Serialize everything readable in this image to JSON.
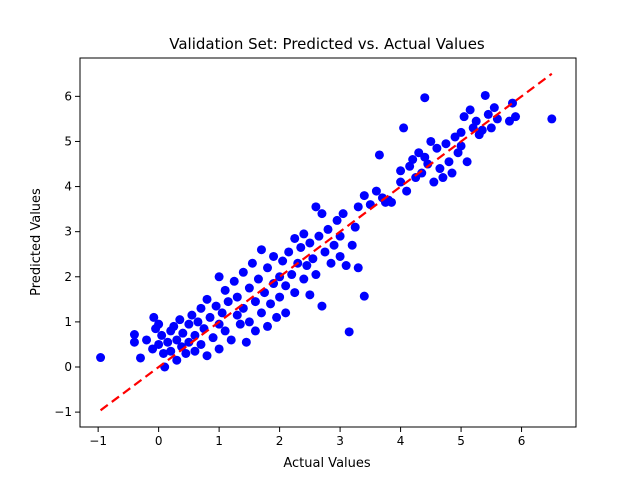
{
  "chart_data": {
    "type": "scatter",
    "title": "Validation Set: Predicted vs. Actual Values",
    "xlabel": "Actual Values",
    "ylabel": "Predicted Values",
    "xlim": [
      -1.3,
      6.9
    ],
    "ylim": [
      -1.33,
      6.85
    ],
    "xticks": [
      -1,
      0,
      1,
      2,
      3,
      4,
      5,
      6
    ],
    "yticks": [
      -1,
      0,
      1,
      2,
      3,
      4,
      5,
      6
    ],
    "grid": false,
    "legend": "none",
    "colors": {
      "points": "#0000ff",
      "reference_line": "#ff0000"
    },
    "reference_line": {
      "style": "dashed",
      "points": [
        [
          -0.96,
          -0.96
        ],
        [
          6.5,
          6.5
        ]
      ]
    },
    "series": [
      {
        "values": [
          [
            -0.96,
            0.21
          ],
          [
            -0.4,
            0.72
          ],
          [
            -0.4,
            0.55
          ],
          [
            -0.3,
            0.2
          ],
          [
            -0.2,
            0.6
          ],
          [
            -0.1,
            0.4
          ],
          [
            -0.08,
            1.1
          ],
          [
            -0.05,
            0.85
          ],
          [
            0.0,
            0.5
          ],
          [
            0.0,
            0.95
          ],
          [
            0.05,
            0.7
          ],
          [
            0.08,
            0.3
          ],
          [
            0.1,
            0.0
          ],
          [
            0.15,
            0.55
          ],
          [
            0.2,
            0.8
          ],
          [
            0.2,
            0.35
          ],
          [
            0.25,
            0.9
          ],
          [
            0.3,
            0.6
          ],
          [
            0.3,
            0.15
          ],
          [
            0.35,
            1.05
          ],
          [
            0.38,
            0.45
          ],
          [
            0.4,
            0.75
          ],
          [
            0.45,
            0.3
          ],
          [
            0.5,
            0.95
          ],
          [
            0.5,
            0.55
          ],
          [
            0.55,
            1.15
          ],
          [
            0.6,
            0.7
          ],
          [
            0.6,
            0.35
          ],
          [
            0.65,
            1.0
          ],
          [
            0.7,
            1.3
          ],
          [
            0.7,
            0.5
          ],
          [
            0.75,
            0.85
          ],
          [
            0.8,
            1.5
          ],
          [
            0.8,
            0.25
          ],
          [
            0.85,
            1.1
          ],
          [
            0.9,
            0.65
          ],
          [
            0.95,
            1.35
          ],
          [
            1.0,
            0.95
          ],
          [
            1.0,
            2.0
          ],
          [
            1.0,
            0.4
          ],
          [
            1.05,
            1.2
          ],
          [
            1.1,
            1.7
          ],
          [
            1.1,
            0.8
          ],
          [
            1.15,
            1.45
          ],
          [
            1.2,
            0.6
          ],
          [
            1.25,
            1.9
          ],
          [
            1.3,
            1.15
          ],
          [
            1.3,
            1.55
          ],
          [
            1.35,
            0.95
          ],
          [
            1.4,
            2.1
          ],
          [
            1.4,
            1.3
          ],
          [
            1.45,
            0.55
          ],
          [
            1.5,
            1.75
          ],
          [
            1.5,
            1.0
          ],
          [
            1.55,
            2.3
          ],
          [
            1.6,
            1.45
          ],
          [
            1.6,
            0.8
          ],
          [
            1.65,
            1.95
          ],
          [
            1.7,
            1.2
          ],
          [
            1.7,
            2.6
          ],
          [
            1.75,
            1.65
          ],
          [
            1.8,
            0.9
          ],
          [
            1.8,
            2.2
          ],
          [
            1.85,
            1.4
          ],
          [
            1.9,
            1.85
          ],
          [
            1.9,
            2.45
          ],
          [
            1.95,
            1.1
          ],
          [
            2.0,
            2.0
          ],
          [
            2.0,
            1.55
          ],
          [
            2.05,
            2.35
          ],
          [
            2.1,
            1.8
          ],
          [
            2.1,
            1.2
          ],
          [
            2.15,
            2.55
          ],
          [
            2.2,
            2.05
          ],
          [
            2.25,
            2.85
          ],
          [
            2.25,
            1.65
          ],
          [
            2.3,
            2.3
          ],
          [
            2.35,
            2.65
          ],
          [
            2.4,
            1.95
          ],
          [
            2.4,
            2.95
          ],
          [
            2.45,
            2.25
          ],
          [
            2.5,
            1.6
          ],
          [
            2.5,
            2.75
          ],
          [
            2.55,
            2.4
          ],
          [
            2.6,
            3.55
          ],
          [
            2.6,
            2.05
          ],
          [
            2.65,
            2.9
          ],
          [
            2.7,
            1.35
          ],
          [
            2.7,
            3.4
          ],
          [
            2.75,
            2.55
          ],
          [
            2.8,
            3.05
          ],
          [
            2.85,
            2.3
          ],
          [
            2.9,
            2.7
          ],
          [
            2.95,
            3.25
          ],
          [
            3.0,
            2.45
          ],
          [
            3.0,
            2.9
          ],
          [
            3.05,
            3.4
          ],
          [
            3.1,
            2.25
          ],
          [
            3.15,
            0.78
          ],
          [
            3.2,
            2.7
          ],
          [
            3.25,
            3.1
          ],
          [
            3.3,
            2.2
          ],
          [
            3.3,
            3.55
          ],
          [
            3.4,
            3.8
          ],
          [
            3.4,
            1.57
          ],
          [
            3.5,
            3.6
          ],
          [
            3.6,
            3.9
          ],
          [
            3.65,
            4.7
          ],
          [
            3.7,
            3.75
          ],
          [
            3.75,
            3.65
          ],
          [
            3.8,
            3.7
          ],
          [
            3.85,
            3.65
          ],
          [
            4.0,
            4.1
          ],
          [
            4.0,
            4.35
          ],
          [
            4.05,
            5.3
          ],
          [
            4.1,
            3.9
          ],
          [
            4.15,
            4.45
          ],
          [
            4.2,
            4.6
          ],
          [
            4.25,
            4.2
          ],
          [
            4.3,
            4.75
          ],
          [
            4.35,
            4.3
          ],
          [
            4.4,
            5.97
          ],
          [
            4.4,
            4.65
          ],
          [
            4.45,
            4.5
          ],
          [
            4.5,
            5.0
          ],
          [
            4.55,
            4.1
          ],
          [
            4.6,
            4.85
          ],
          [
            4.65,
            4.4
          ],
          [
            4.7,
            4.2
          ],
          [
            4.75,
            4.95
          ],
          [
            4.8,
            4.55
          ],
          [
            4.85,
            4.3
          ],
          [
            4.9,
            5.1
          ],
          [
            4.95,
            4.75
          ],
          [
            5.0,
            5.2
          ],
          [
            5.0,
            4.9
          ],
          [
            5.05,
            5.55
          ],
          [
            5.1,
            4.55
          ],
          [
            5.15,
            5.7
          ],
          [
            5.2,
            5.3
          ],
          [
            5.25,
            5.45
          ],
          [
            5.3,
            5.15
          ],
          [
            5.35,
            5.25
          ],
          [
            5.4,
            6.02
          ],
          [
            5.45,
            5.6
          ],
          [
            5.5,
            5.3
          ],
          [
            5.55,
            5.75
          ],
          [
            5.6,
            5.5
          ],
          [
            5.8,
            5.45
          ],
          [
            5.85,
            5.85
          ],
          [
            5.9,
            5.55
          ],
          [
            6.5,
            5.5
          ]
        ]
      }
    ]
  }
}
